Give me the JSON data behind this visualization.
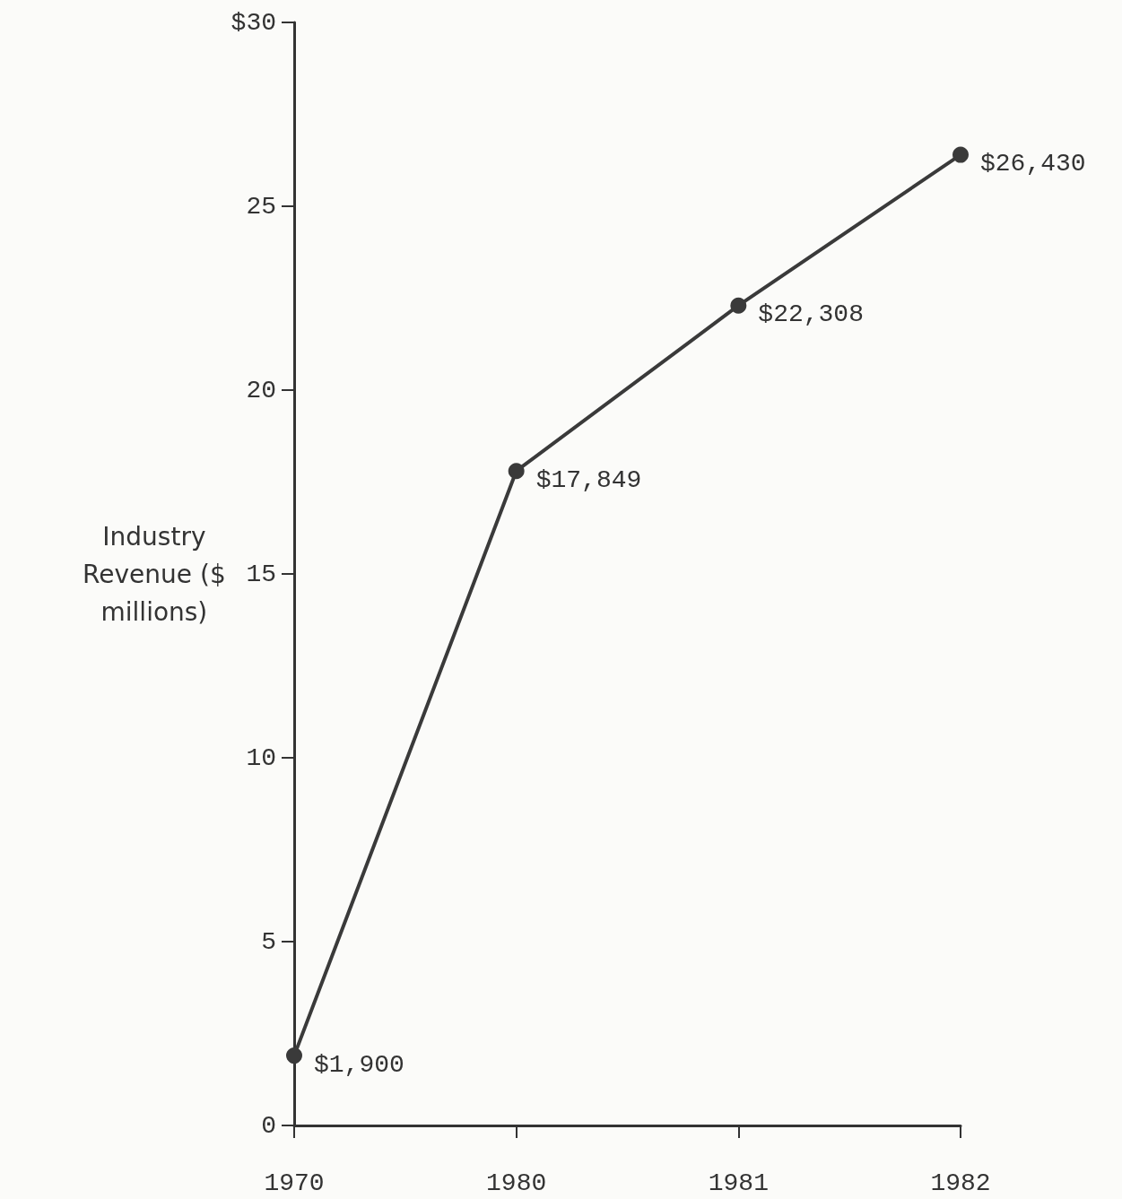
{
  "chart_data": {
    "type": "line",
    "ylabel": "Industry Revenue ($ millions)",
    "categories": [
      "1970",
      "1980",
      "1981",
      "1982"
    ],
    "series": [
      {
        "color": "#3a3a3a",
        "values": [
          1.9,
          17.8,
          22.3,
          26.4
        ]
      }
    ],
    "annotations": [
      {
        "text": "$1,900",
        "x": "1970",
        "y": 1.9
      },
      {
        "text": "$17,849",
        "x": "1980",
        "y": 17.8
      },
      {
        "text": "$22,308",
        "x": "1981",
        "y": 22.3
      },
      {
        "text": "$26,430",
        "x": "1982",
        "y": 26.4
      }
    ],
    "ylim": [
      0,
      30
    ],
    "yticks": [
      0,
      5,
      10,
      15,
      20,
      25,
      {
        "value": 30,
        "label": "$30"
      }
    ],
    "grid": false,
    "marker": "circle",
    "line_style": "solid"
  }
}
